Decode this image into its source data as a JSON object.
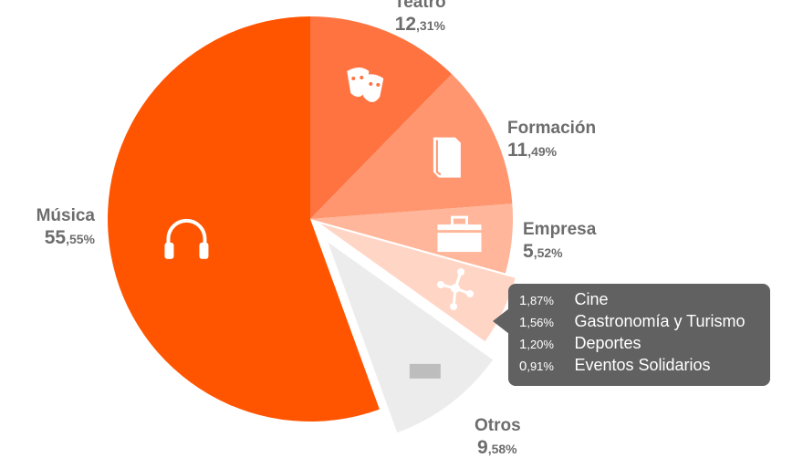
{
  "chart_data": {
    "type": "pie",
    "start_angle_deg": 0,
    "direction": "clockwise",
    "slices": [
      {
        "name": "Teatro",
        "value": 12.31,
        "pct_int": "12",
        "pct_dec": ",31%",
        "color": "#ff7340",
        "icon": "theater-masks-icon"
      },
      {
        "name": "Formación",
        "value": 11.49,
        "pct_int": "11",
        "pct_dec": ",49%",
        "color": "#ff9670",
        "icon": "book-icon"
      },
      {
        "name": "Empresa",
        "value": 5.52,
        "pct_int": "5",
        "pct_dec": ",52%",
        "color": "#ffb69a",
        "icon": "briefcase-icon"
      },
      {
        "name": "",
        "value": 5.54,
        "color": "#ffd6c6",
        "icon": "network-icon",
        "exploded": true,
        "group": "others-detail"
      },
      {
        "name": "Otros",
        "value": 9.58,
        "pct_int": "9",
        "pct_dec": ",58%",
        "color": "#ececec",
        "icon": "ticket-icon",
        "exploded": true
      },
      {
        "name": "Música",
        "value": 55.55,
        "pct_int": "55",
        "pct_dec": ",55%",
        "color": "#ff5500",
        "icon": "headphones-icon"
      }
    ],
    "tooltip_items": [
      {
        "pct_int": "1",
        "pct_dec": ",87%",
        "name": "Cine"
      },
      {
        "pct_int": "1",
        "pct_dec": ",56%",
        "name": "Gastronomía y Turismo"
      },
      {
        "pct_int": "1",
        "pct_dec": ",20%",
        "name": "Deportes"
      },
      {
        "pct_int": "0",
        "pct_dec": ",91%",
        "name": "Eventos Solidarios"
      }
    ]
  }
}
